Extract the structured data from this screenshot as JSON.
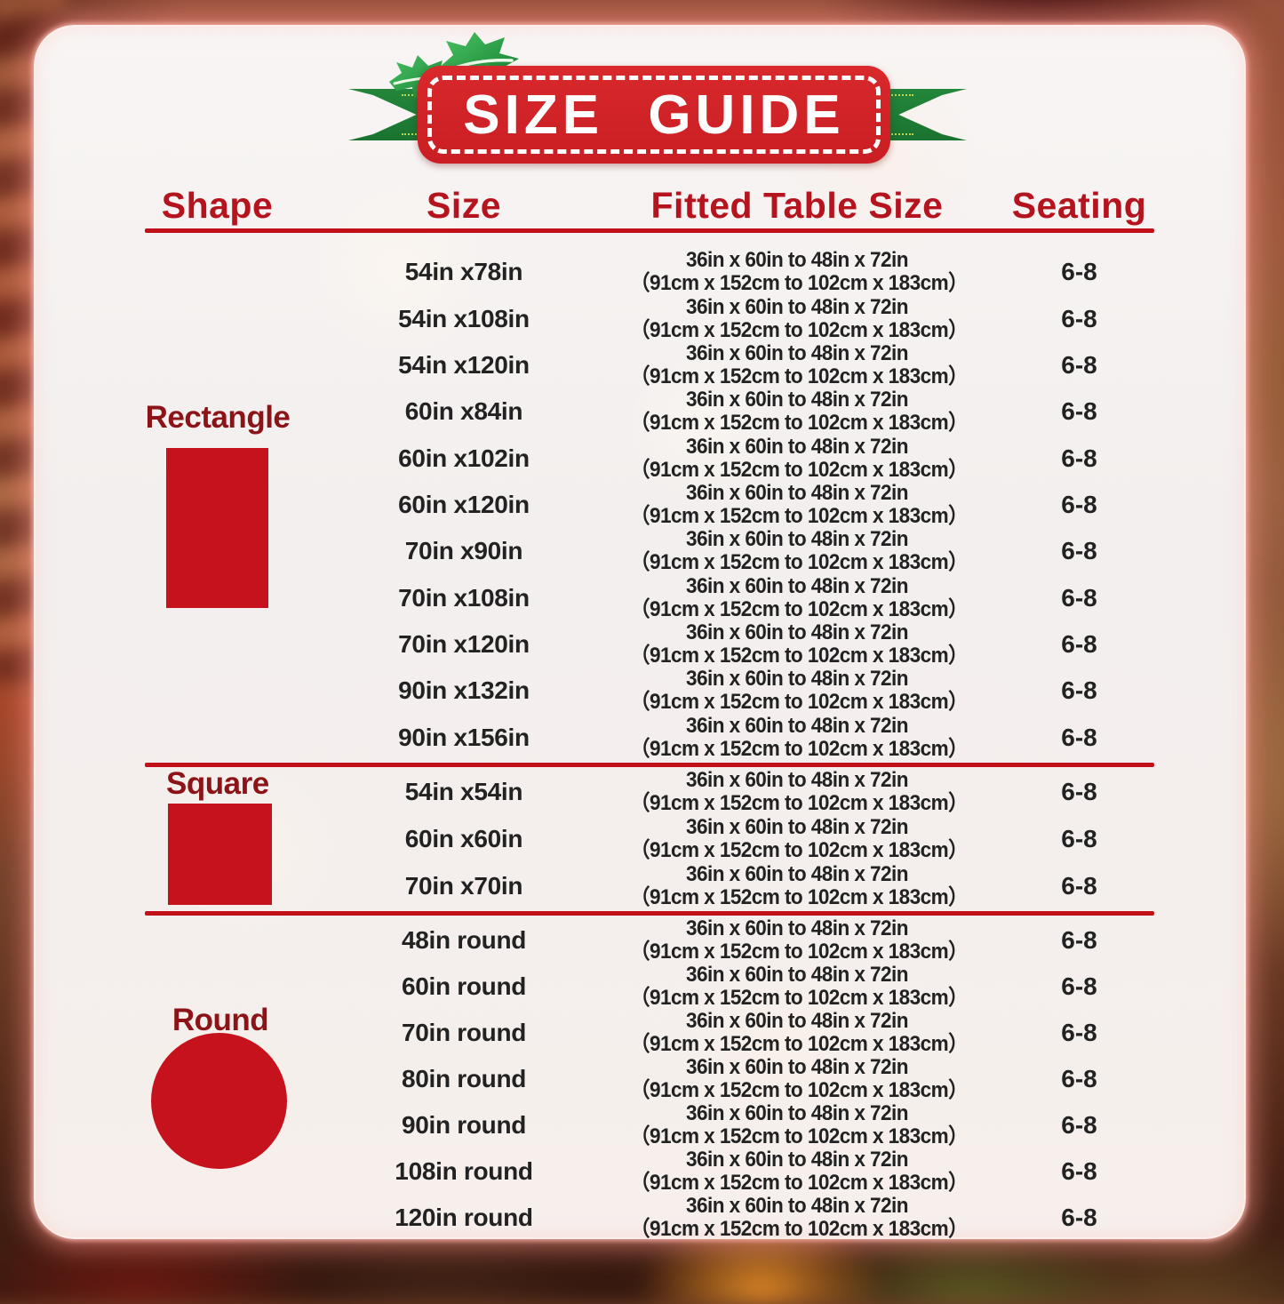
{
  "title": "SIZE GUIDE",
  "columns": {
    "shape": "Shape",
    "size": "Size",
    "fitted": "Fitted Table Size",
    "seating": "Seating"
  },
  "icons": {
    "holly": "holly-icon",
    "rectangle": "rectangle-icon",
    "square": "square-icon",
    "round": "circle-icon"
  },
  "colors": {
    "header_red": "#b5141f",
    "label_red": "#8c1418",
    "line_red": "#c1101a",
    "icon_red": "#c5121c",
    "banner_red": "#d32629",
    "ribbon_green": "#1e7c34",
    "stitch_green": "#c3dd52",
    "text_dark": "#222222"
  },
  "sections": [
    {
      "key": "rectangle",
      "shape": "Rectangle",
      "rows": [
        {
          "size": "54in x78in",
          "fitted_in": "36in x 60in to 48in x 72in",
          "fitted_cm": "（91cm x 152cm to 102cm x 183cm）",
          "seating": "6-8"
        },
        {
          "size": "54in x108in",
          "fitted_in": "36in x 60in to 48in x 72in",
          "fitted_cm": "（91cm x 152cm to 102cm x 183cm）",
          "seating": "6-8"
        },
        {
          "size": "54in x120in",
          "fitted_in": "36in x 60in to 48in x 72in",
          "fitted_cm": "（91cm x 152cm to 102cm x 183cm）",
          "seating": "6-8"
        },
        {
          "size": "60in x84in",
          "fitted_in": "36in x 60in to 48in x 72in",
          "fitted_cm": "（91cm x 152cm to 102cm x 183cm）",
          "seating": "6-8"
        },
        {
          "size": "60in x102in",
          "fitted_in": "36in x 60in to 48in x 72in",
          "fitted_cm": "（91cm x 152cm to 102cm x 183cm）",
          "seating": "6-8"
        },
        {
          "size": "60in x120in",
          "fitted_in": "36in x 60in to 48in x 72in",
          "fitted_cm": "（91cm x 152cm to 102cm x 183cm）",
          "seating": "6-8"
        },
        {
          "size": "70in x90in",
          "fitted_in": "36in x 60in to 48in x 72in",
          "fitted_cm": "（91cm x 152cm to 102cm x 183cm）",
          "seating": "6-8"
        },
        {
          "size": "70in x108in",
          "fitted_in": "36in x 60in to 48in x 72in",
          "fitted_cm": "（91cm x 152cm to 102cm x 183cm）",
          "seating": "6-8"
        },
        {
          "size": "70in x120in",
          "fitted_in": "36in x 60in to 48in x 72in",
          "fitted_cm": "（91cm x 152cm to 102cm x 183cm）",
          "seating": "6-8"
        },
        {
          "size": "90in x132in",
          "fitted_in": "36in x 60in to 48in x 72in",
          "fitted_cm": "（91cm x 152cm to 102cm x 183cm）",
          "seating": "6-8"
        },
        {
          "size": "90in x156in",
          "fitted_in": "36in x 60in to 48in x 72in",
          "fitted_cm": "（91cm x 152cm to 102cm x 183cm）",
          "seating": "6-8"
        }
      ]
    },
    {
      "key": "square",
      "shape": "Square",
      "rows": [
        {
          "size": "54in x54in",
          "fitted_in": "36in x 60in to 48in x 72in",
          "fitted_cm": "（91cm x 152cm to 102cm x 183cm）",
          "seating": "6-8"
        },
        {
          "size": "60in x60in",
          "fitted_in": "36in x 60in to 48in x 72in",
          "fitted_cm": "（91cm x 152cm to 102cm x 183cm）",
          "seating": "6-8"
        },
        {
          "size": "70in x70in",
          "fitted_in": "36in x 60in to 48in x 72in",
          "fitted_cm": "（91cm x 152cm to 102cm x 183cm）",
          "seating": "6-8"
        }
      ]
    },
    {
      "key": "round",
      "shape": "Round",
      "rows": [
        {
          "size": "48in round",
          "fitted_in": "36in x 60in to 48in x 72in",
          "fitted_cm": "（91cm x 152cm to 102cm x 183cm）",
          "seating": "6-8"
        },
        {
          "size": "60in round",
          "fitted_in": "36in x 60in to 48in x 72in",
          "fitted_cm": "（91cm x 152cm to 102cm x 183cm）",
          "seating": "6-8"
        },
        {
          "size": "70in round",
          "fitted_in": "36in x 60in to 48in x 72in",
          "fitted_cm": "（91cm x 152cm to 102cm x 183cm）",
          "seating": "6-8"
        },
        {
          "size": "80in round",
          "fitted_in": "36in x 60in to 48in x 72in",
          "fitted_cm": "（91cm x 152cm to 102cm x 183cm）",
          "seating": "6-8"
        },
        {
          "size": "90in round",
          "fitted_in": "36in x 60in to 48in x 72in",
          "fitted_cm": "（91cm x 152cm to 102cm x 183cm）",
          "seating": "6-8"
        },
        {
          "size": "108in round",
          "fitted_in": "36in x 60in to 48in x 72in",
          "fitted_cm": "（91cm x 152cm to 102cm x 183cm）",
          "seating": "6-8"
        },
        {
          "size": "120in round",
          "fitted_in": "36in x 60in to 48in x 72in",
          "fitted_cm": "（91cm x 152cm to 102cm x 183cm）",
          "seating": "6-8"
        }
      ]
    }
  ]
}
